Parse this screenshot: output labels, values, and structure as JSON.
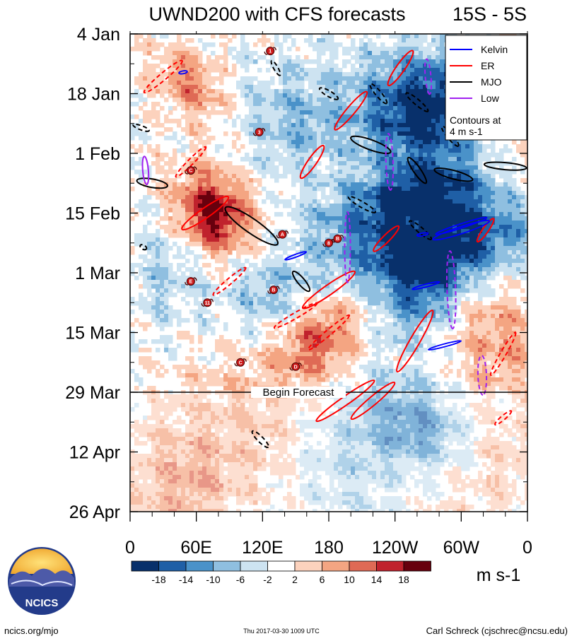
{
  "chart_data": {
    "type": "heatmap",
    "title": "UWND200 with CFS forecasts",
    "subtitle": "15S - 5S",
    "xlabel": "",
    "ylabel": "",
    "x_ticks": [
      "0",
      "60E",
      "120E",
      "180",
      "120W",
      "60W",
      "0"
    ],
    "x_range_deg": [
      0,
      360
    ],
    "y_ticks": [
      "4 Jan",
      "18 Jan",
      "1 Feb",
      "15 Feb",
      "1 Mar",
      "15 Mar",
      "29 Mar",
      "12 Apr",
      "26 Apr"
    ],
    "y_range_days_from_4_Jan": [
      0,
      112
    ],
    "forecast_start_day": 84,
    "forecast_label": "Begin Forecast",
    "units_label": "m s-1",
    "colorbar": {
      "labels": [
        "-18",
        "-14",
        "-10",
        "-6",
        "-2",
        "2",
        "6",
        "10",
        "14",
        "18"
      ],
      "colors": [
        "#08306b",
        "#1f5fa6",
        "#4a92c9",
        "#8fbfe0",
        "#cde3f1",
        "#ffffff",
        "#fcd2bd",
        "#f4a582",
        "#df6a55",
        "#c0222d",
        "#67000d"
      ]
    },
    "legend": {
      "position": "top-right",
      "entries": [
        {
          "name": "Kelvin",
          "color": "#0000ff"
        },
        {
          "name": "ER",
          "color": "#ff0000"
        },
        {
          "name": "MJO",
          "color": "#000000"
        },
        {
          "name": "Low",
          "color": "#a020f0"
        }
      ],
      "note_line1": "Contours at",
      "note_line2": "4 m s-1"
    },
    "contours": [
      {
        "type": "ER",
        "sign": "pos",
        "lon": 68,
        "day": 42,
        "rx": 40,
        "ry": 7,
        "angle": -35
      },
      {
        "type": "ER",
        "sign": "pos",
        "lon": 165,
        "day": 30,
        "rx": 28,
        "ry": 6,
        "angle": -55
      },
      {
        "type": "ER",
        "sign": "pos",
        "lon": 200,
        "day": 18,
        "rx": 35,
        "ry": 6,
        "angle": -50
      },
      {
        "type": "ER",
        "sign": "pos",
        "lon": 245,
        "day": 8,
        "rx": 30,
        "ry": 6,
        "angle": -55
      },
      {
        "type": "ER",
        "sign": "pos",
        "lon": 180,
        "day": 60,
        "rx": 45,
        "ry": 7,
        "angle": -35
      },
      {
        "type": "ER",
        "sign": "pos",
        "lon": 258,
        "day": 72,
        "rx": 50,
        "ry": 7,
        "angle": -60
      },
      {
        "type": "ER",
        "sign": "pos",
        "lon": 195,
        "day": 86,
        "rx": 50,
        "ry": 6,
        "angle": -35
      },
      {
        "type": "ER",
        "sign": "pos",
        "lon": 220,
        "day": 86,
        "rx": 40,
        "ry": 6,
        "angle": -40
      },
      {
        "type": "ER",
        "sign": "pos",
        "lon": 322,
        "day": 46,
        "rx": 20,
        "ry": 4,
        "angle": -55
      },
      {
        "type": "ER",
        "sign": "pos",
        "lon": 232,
        "day": 48,
        "rx": 25,
        "ry": 5,
        "angle": -45
      },
      {
        "type": "ER",
        "sign": "neg",
        "lon": 30,
        "day": 10,
        "rx": 35,
        "ry": 5,
        "angle": -40
      },
      {
        "type": "ER",
        "sign": "neg",
        "lon": 55,
        "day": 30,
        "rx": 30,
        "ry": 4,
        "angle": -45
      },
      {
        "type": "ER",
        "sign": "neg",
        "lon": 90,
        "day": 58,
        "rx": 30,
        "ry": 4,
        "angle": -40
      },
      {
        "type": "ER",
        "sign": "neg",
        "lon": 150,
        "day": 66,
        "rx": 35,
        "ry": 4,
        "angle": -30
      },
      {
        "type": "ER",
        "sign": "neg",
        "lon": 180,
        "day": 70,
        "rx": 38,
        "ry": 4,
        "angle": -40
      },
      {
        "type": "ER",
        "sign": "neg",
        "lon": 338,
        "day": 75,
        "rx": 35,
        "ry": 4,
        "angle": -60
      },
      {
        "type": "ER",
        "sign": "neg",
        "lon": 338,
        "day": 90,
        "rx": 15,
        "ry": 3,
        "angle": -40
      },
      {
        "type": "MJO",
        "sign": "pos",
        "lon": 110,
        "day": 45,
        "rx": 45,
        "ry": 10,
        "angle": 35
      },
      {
        "type": "MJO",
        "sign": "pos",
        "lon": 218,
        "day": 26,
        "rx": 30,
        "ry": 7,
        "angle": 20
      },
      {
        "type": "MJO",
        "sign": "pos",
        "lon": 293,
        "day": 33,
        "rx": 28,
        "ry": 6,
        "angle": 15
      },
      {
        "type": "MJO",
        "sign": "pos",
        "lon": 20,
        "day": 35,
        "rx": 22,
        "ry": 6,
        "angle": 10
      },
      {
        "type": "MJO",
        "sign": "pos",
        "lon": 340,
        "day": 31,
        "rx": 30,
        "ry": 5,
        "angle": 5
      },
      {
        "type": "MJO",
        "sign": "pos",
        "lon": 260,
        "day": 32,
        "rx": 22,
        "ry": 5,
        "angle": 55
      },
      {
        "type": "MJO",
        "sign": "pos",
        "lon": 155,
        "day": 58,
        "rx": 18,
        "ry": 5,
        "angle": 50
      },
      {
        "type": "MJO",
        "sign": "neg",
        "lon": 225,
        "day": 14,
        "rx": 18,
        "ry": 4,
        "angle": 50
      },
      {
        "type": "MJO",
        "sign": "neg",
        "lon": 260,
        "day": 16,
        "rx": 20,
        "ry": 4,
        "angle": 40
      },
      {
        "type": "MJO",
        "sign": "neg",
        "lon": 290,
        "day": 24,
        "rx": 18,
        "ry": 4,
        "angle": 50
      },
      {
        "type": "MJO",
        "sign": "neg",
        "lon": 180,
        "day": 14,
        "rx": 15,
        "ry": 4,
        "angle": 30
      },
      {
        "type": "MJO",
        "sign": "neg",
        "lon": 132,
        "day": 8,
        "rx": 12,
        "ry": 3,
        "angle": 60
      },
      {
        "type": "MJO",
        "sign": "neg",
        "lon": 10,
        "day": 22,
        "rx": 12,
        "ry": 3,
        "angle": 20
      },
      {
        "type": "MJO",
        "sign": "neg",
        "lon": 210,
        "day": 40,
        "rx": 22,
        "ry": 4,
        "angle": 30
      },
      {
        "type": "MJO",
        "sign": "neg",
        "lon": 263,
        "day": 46,
        "rx": 20,
        "ry": 4,
        "angle": 40
      },
      {
        "type": "MJO",
        "sign": "neg",
        "lon": 118,
        "day": 95,
        "rx": 16,
        "ry": 4,
        "angle": 45
      },
      {
        "type": "MJO",
        "sign": "neg",
        "lon": 12,
        "day": 50,
        "rx": 5,
        "ry": 3,
        "angle": 30
      },
      {
        "type": "Low",
        "sign": "pos",
        "lon": 14,
        "day": 32,
        "rx": 20,
        "ry": 4,
        "angle": 85
      },
      {
        "type": "Low",
        "sign": "neg",
        "lon": 197,
        "day": 50,
        "rx": 50,
        "ry": 4,
        "angle": 90
      },
      {
        "type": "Low",
        "sign": "neg",
        "lon": 235,
        "day": 30,
        "rx": 40,
        "ry": 5,
        "angle": 88
      },
      {
        "type": "Low",
        "sign": "neg",
        "lon": 270,
        "day": 10,
        "rx": 25,
        "ry": 4,
        "angle": 85
      },
      {
        "type": "Low",
        "sign": "neg",
        "lon": 291,
        "day": 60,
        "rx": 55,
        "ry": 6,
        "angle": 88
      },
      {
        "type": "Low",
        "sign": "neg",
        "lon": 319,
        "day": 80,
        "rx": 28,
        "ry": 6,
        "angle": 88
      },
      {
        "type": "Kelvin",
        "sign": "pos",
        "lon": 300,
        "day": 46,
        "rx": 42,
        "ry": 5,
        "angle": -18
      },
      {
        "type": "Kelvin",
        "sign": "pos",
        "lon": 300,
        "day": 45,
        "rx": 38,
        "ry": 3,
        "angle": -18
      },
      {
        "type": "Kelvin",
        "sign": "pos",
        "lon": 150,
        "day": 52,
        "rx": 16,
        "ry": 2,
        "angle": -20
      },
      {
        "type": "Kelvin",
        "sign": "pos",
        "lon": 268,
        "day": 59,
        "rx": 20,
        "ry": 2,
        "angle": -15
      },
      {
        "type": "Kelvin",
        "sign": "pos",
        "lon": 285,
        "day": 73,
        "rx": 24,
        "ry": 2,
        "angle": -15
      },
      {
        "type": "Kelvin",
        "sign": "pos",
        "lon": 48,
        "day": 9,
        "rx": 6,
        "ry": 2,
        "angle": -10
      },
      {
        "type": "Kelvin",
        "sign": "pos",
        "lon": 265,
        "day": 47,
        "rx": 8,
        "ry": 2,
        "angle": -10
      }
    ],
    "cyclone_symbols": [
      {
        "label": "1",
        "lon": 127,
        "day": 4
      },
      {
        "label": "3",
        "lon": 117,
        "day": 23
      },
      {
        "label": "C",
        "lon": 55,
        "day": 32
      },
      {
        "label": "A",
        "lon": 138,
        "day": 47
      },
      {
        "label": "B",
        "lon": 188,
        "day": 48
      },
      {
        "label": "8",
        "lon": 180,
        "day": 49
      },
      {
        "label": "E",
        "lon": 55,
        "day": 58
      },
      {
        "label": "B",
        "lon": 130,
        "day": 60
      },
      {
        "label": "11",
        "lon": 70,
        "day": 63
      },
      {
        "label": "C",
        "lon": 100,
        "day": 77
      },
      {
        "label": "D",
        "lon": 150,
        "day": 78
      }
    ]
  },
  "branding": {
    "logo_text": "NCICS",
    "left": "ncics.org/mjo",
    "center": "Thu 2017-03-30 1009 UTC",
    "right": "Carl Schreck (cjschrec@ncsu.edu)"
  }
}
